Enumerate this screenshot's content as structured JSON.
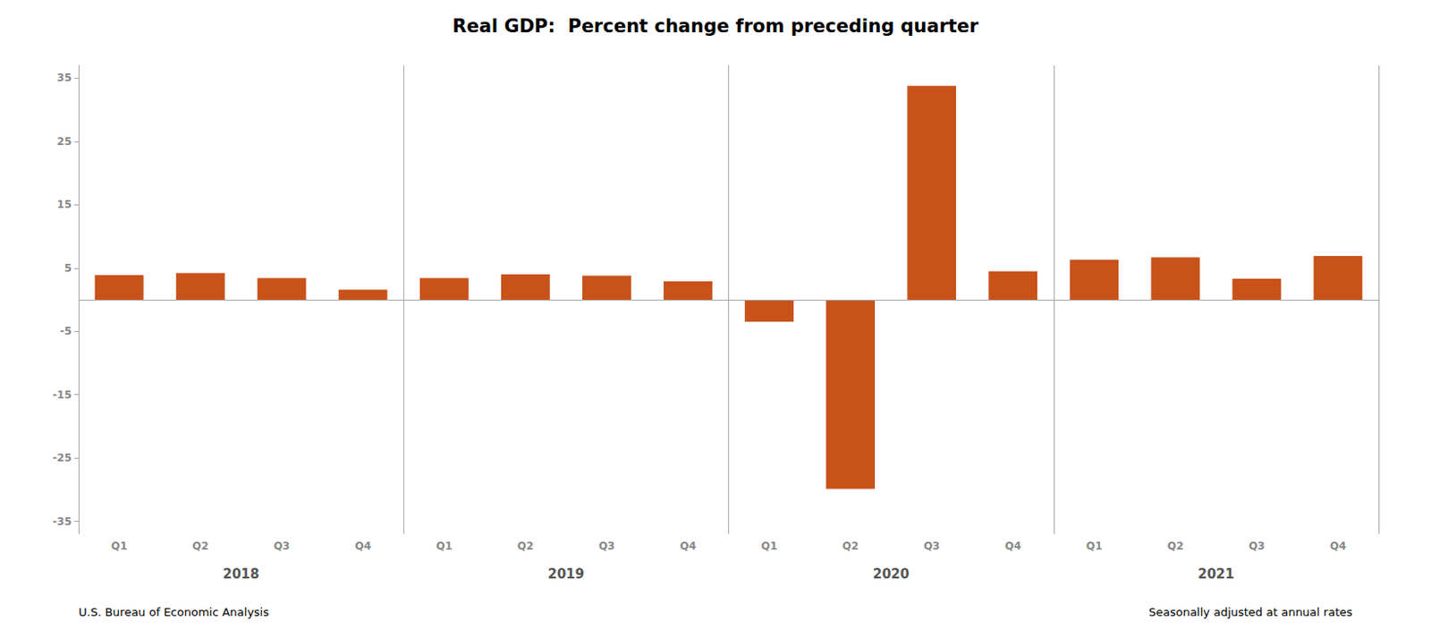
{
  "chart_data": {
    "type": "bar",
    "title": "Real GDP:  Percent change from preceding quarter",
    "categories": [
      "Q1",
      "Q2",
      "Q3",
      "Q4",
      "Q1",
      "Q2",
      "Q3",
      "Q4",
      "Q1",
      "Q2",
      "Q3",
      "Q4",
      "Q1",
      "Q2",
      "Q3",
      "Q4"
    ],
    "values": [
      3.9,
      4.2,
      3.4,
      1.6,
      3.4,
      4.0,
      3.8,
      2.9,
      -3.5,
      -29.9,
      33.8,
      4.5,
      6.3,
      6.7,
      3.3,
      6.9
    ],
    "color": "#C8521A",
    "year_labels": [
      "2018",
      "2019",
      "2020",
      "2021"
    ],
    "footnotes": [
      "U.S. Bureau of Economic Analysis",
      "Seasonally adjusted at annual rates"
    ],
    "ylim": [
      -37,
      37
    ],
    "yticks": [
      -35,
      -25,
      -15,
      -5,
      5,
      15,
      25,
      35
    ],
    "grid": false
  }
}
